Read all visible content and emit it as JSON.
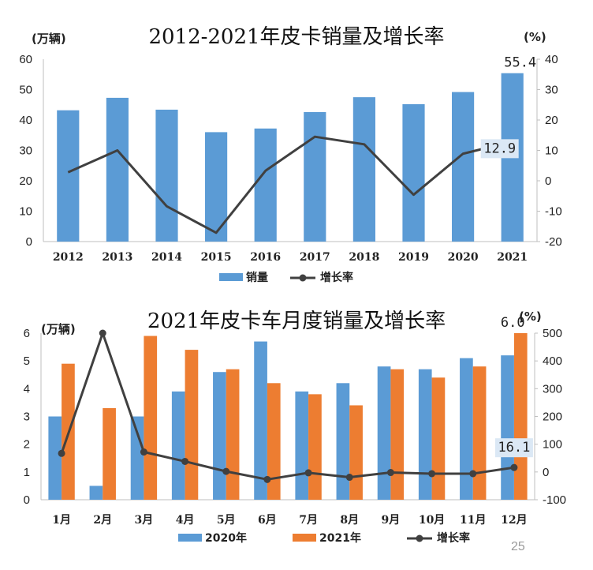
{
  "colors": {
    "bar_blue": "#5b9bd5",
    "bar_orange": "#ed7d31",
    "line": "#404040",
    "label_bg": "#dbe8f5",
    "watermark": "#e6e6e6"
  },
  "page": {
    "number": "25"
  },
  "chart_data": [
    {
      "type": "bar",
      "title": "2012-2021年皮卡销量及增长率",
      "left_unit": "(万辆)",
      "right_unit": "(%)",
      "categories": [
        "2012",
        "2013",
        "2014",
        "2015",
        "2016",
        "2017",
        "2018",
        "2019",
        "2020",
        "2021"
      ],
      "series": [
        {
          "name": "销量",
          "kind": "bar",
          "axis": "left",
          "color": "#5b9bd5",
          "values": [
            43.2,
            47.3,
            43.4,
            36.0,
            37.2,
            42.6,
            47.5,
            45.2,
            49.2,
            55.4
          ]
        },
        {
          "name": "增长率",
          "kind": "line",
          "axis": "right",
          "color": "#404040",
          "values": [
            2.8,
            10.0,
            -8.4,
            -17.1,
            3.3,
            14.5,
            12.0,
            -4.6,
            8.9,
            12.9
          ]
        }
      ],
      "y_left": {
        "min": 0,
        "max": 60,
        "ticks": [
          "0",
          "10",
          "20",
          "30",
          "40",
          "50",
          "60"
        ]
      },
      "y_right": {
        "min": -20,
        "max": 40,
        "ticks": [
          "-20",
          "-10",
          "0",
          "10",
          "20",
          "30",
          "40"
        ]
      },
      "data_labels": [
        {
          "series": 0,
          "index": 9,
          "text": "55.4"
        },
        {
          "series": 1,
          "index": 9,
          "text": "12.9"
        }
      ],
      "legend": [
        "销量",
        "增长率"
      ],
      "legend_position": "bottom",
      "grid": false
    },
    {
      "type": "bar",
      "title": "2021年皮卡车月度销量及增长率",
      "left_unit": "(万辆)",
      "right_unit": "(%)",
      "categories": [
        "1月",
        "2月",
        "3月",
        "4月",
        "5月",
        "6月",
        "7月",
        "8月",
        "9月",
        "10月",
        "11月",
        "12月"
      ],
      "series": [
        {
          "name": "2020年",
          "kind": "bar",
          "axis": "left",
          "color": "#5b9bd5",
          "values": [
            3.0,
            0.5,
            3.0,
            3.9,
            4.6,
            5.7,
            3.9,
            4.2,
            4.8,
            4.7,
            5.1,
            5.2
          ]
        },
        {
          "name": "2021年",
          "kind": "bar",
          "axis": "left",
          "color": "#ed7d31",
          "values": [
            4.9,
            3.3,
            5.9,
            5.4,
            4.7,
            4.2,
            3.8,
            3.4,
            4.7,
            4.4,
            4.8,
            6.0
          ]
        },
        {
          "name": "增长率",
          "kind": "line",
          "axis": "right",
          "color": "#404040",
          "values": [
            67,
            500,
            72,
            38,
            2,
            -27,
            -3,
            -19,
            -2,
            -6,
            -6,
            16.1
          ]
        }
      ],
      "y_left": {
        "min": 0,
        "max": 6,
        "ticks": [
          "0",
          "1",
          "2",
          "3",
          "4",
          "5",
          "6"
        ]
      },
      "y_right": {
        "min": -100,
        "max": 500,
        "ticks": [
          "-100",
          "0",
          "100",
          "200",
          "300",
          "400",
          "500"
        ]
      },
      "data_labels": [
        {
          "series": 1,
          "index": 11,
          "text": "6.0"
        },
        {
          "series": 2,
          "index": 11,
          "text": "16.1"
        }
      ],
      "legend": [
        "2020年",
        "2021年",
        "增长率"
      ],
      "legend_position": "bottom",
      "grid": false
    }
  ]
}
